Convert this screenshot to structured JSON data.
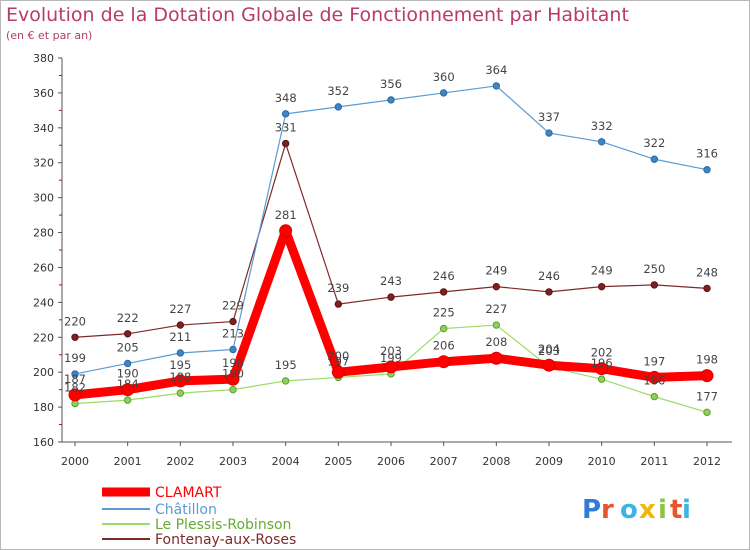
{
  "chart_data": {
    "type": "line",
    "title": "Evolution de la Dotation Globale de Fonctionnement par Habitant",
    "subtitle": "(en € et par an)",
    "x": [
      "2000",
      "2001",
      "2002",
      "2003",
      "2004",
      "2005",
      "2006",
      "2007",
      "2008",
      "2009",
      "2010",
      "2011",
      "2012"
    ],
    "ylim": [
      160,
      380
    ],
    "yticks": [
      160,
      180,
      200,
      220,
      240,
      260,
      280,
      300,
      320,
      340,
      360,
      380
    ],
    "grid": false,
    "legend_position": "bottom-left",
    "series": [
      {
        "name": "CLAMART",
        "color": "#ff0000",
        "values": [
          187,
          190,
          195,
          196,
          281,
          200,
          203,
          206,
          208,
          204,
          202,
          197,
          198
        ]
      },
      {
        "name": "Châtillon",
        "color": "#5b9bd5",
        "values": [
          199,
          205,
          211,
          213,
          348,
          352,
          356,
          360,
          364,
          337,
          332,
          322,
          316
        ]
      },
      {
        "name": "Le Plessis-Robinson",
        "color": "#99dd66",
        "values": [
          182,
          184,
          188,
          190,
          195,
          197,
          199,
          225,
          227,
          203,
          196,
          186,
          177
        ]
      },
      {
        "name": "Fontenay-aux-Roses",
        "color": "#7f2a2a",
        "values": [
          220,
          222,
          227,
          229,
          331,
          239,
          243,
          246,
          249,
          246,
          249,
          250,
          248
        ]
      }
    ],
    "data_labels": [
      {
        "series": "CLAMART",
        "labels": [
          "187",
          "190",
          "195",
          "196",
          "281",
          "200",
          "203",
          "206",
          "208",
          "204",
          "202",
          "197",
          "198"
        ]
      },
      {
        "series": "Châtillon",
        "labels": [
          "199",
          "205",
          "211",
          "213",
          "348",
          "352",
          "356",
          "360",
          "364",
          "337",
          "332",
          "322",
          "316"
        ]
      },
      {
        "series": "Le Plessis-Robinson",
        "labels": [
          "182",
          "184",
          "188",
          "190",
          "195",
          "197",
          "199",
          "225",
          "227",
          "203",
          "196",
          "186",
          "177"
        ]
      },
      {
        "series": "Fontenay-aux-Roses",
        "labels": [
          "220",
          "222",
          "227",
          "229",
          "331",
          "239",
          "243",
          "246",
          "249",
          "246",
          "249",
          "250",
          "248"
        ]
      }
    ]
  },
  "logo": {
    "text": "Proxiti"
  }
}
